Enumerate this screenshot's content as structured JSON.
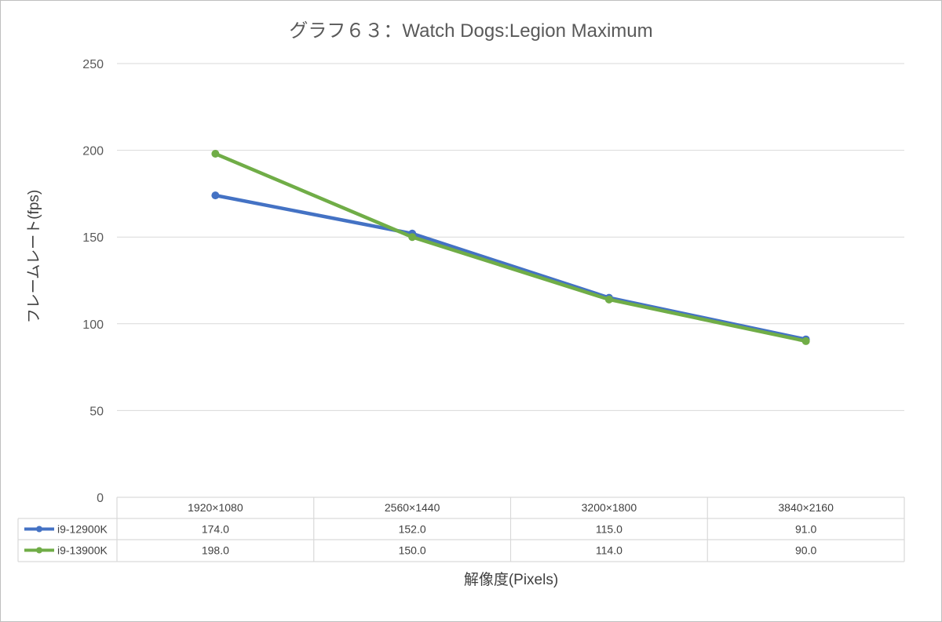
{
  "chart_data": {
    "type": "line",
    "title": "グラフ６３：Watch Dogs:Legion Maximum",
    "xlabel": "解像度(Pixels)",
    "ylabel": "フレームレート(fps)",
    "categories": [
      "1920×1080",
      "2560×1440",
      "3200×1800",
      "3840×2160"
    ],
    "ylim": [
      0,
      250
    ],
    "yticks": [
      "0",
      "50",
      "100",
      "150",
      "200",
      "250"
    ],
    "grid": true,
    "legend": "data-table",
    "series": [
      {
        "name": "i9-12900K",
        "color": "#4472c4",
        "values": [
          174,
          152,
          115,
          91
        ],
        "labels": [
          "174.0",
          "152.0",
          "115.0",
          "91.0"
        ]
      },
      {
        "name": "i9-13900K",
        "color": "#70ad47",
        "values": [
          198,
          150,
          114,
          90
        ],
        "labels": [
          "198.0",
          "150.0",
          "114.0",
          "90.0"
        ]
      }
    ]
  }
}
